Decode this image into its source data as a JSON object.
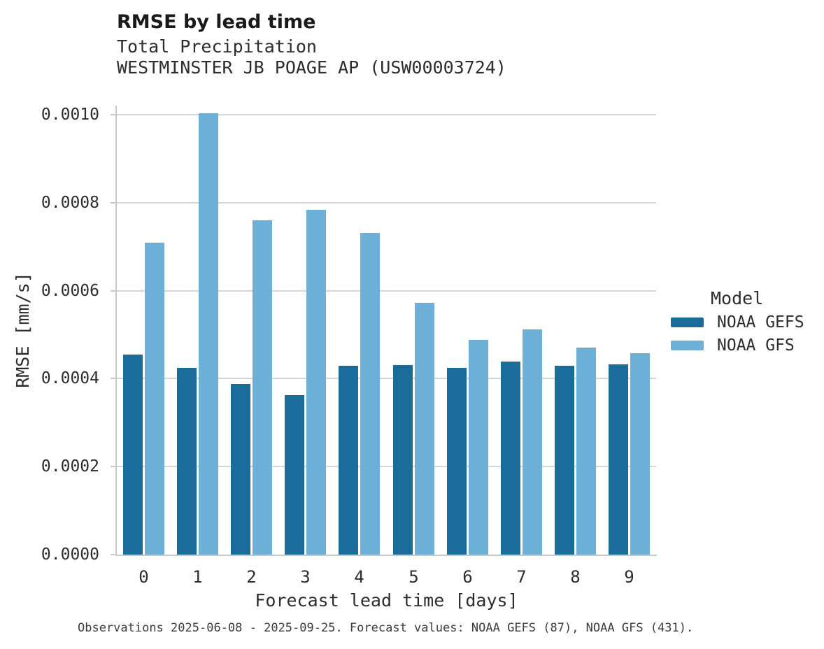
{
  "header": {
    "title": "RMSE by lead time",
    "subtitle1": "Total Precipitation",
    "subtitle2": "WESTMINSTER JB POAGE AP (USW00003724)"
  },
  "caption": "Observations 2025-06-08 - 2025-09-25. Forecast values: NOAA GEFS (87), NOAA GFS (431).",
  "colors": {
    "noaa_gefs": "#1a6d9b",
    "noaa_gfs": "#6cb0d8",
    "gridline": "#d6d6d6",
    "spine": "#c9c9c9"
  },
  "chart_data": {
    "type": "bar",
    "title": "RMSE by lead time",
    "subtitle": [
      "Total Precipitation",
      "WESTMINSTER JB POAGE AP (USW00003724)"
    ],
    "xlabel": "Forecast lead time [days]",
    "ylabel": "RMSE [mm/s]",
    "legend_title": "Model",
    "legend_position": "right",
    "grid": "horizontal",
    "categories": [
      "0",
      "1",
      "2",
      "3",
      "4",
      "5",
      "6",
      "7",
      "8",
      "9"
    ],
    "series": [
      {
        "name": "NOAA GEFS",
        "color": "#1a6d9b",
        "values": [
          0.000455,
          0.000425,
          0.000388,
          0.000362,
          0.000429,
          0.000431,
          0.000424,
          0.000439,
          0.000429,
          0.000432
        ]
      },
      {
        "name": "NOAA GFS",
        "color": "#6cb0d8",
        "values": [
          0.00071,
          0.001003,
          0.00076,
          0.000784,
          0.000731,
          0.000572,
          0.000489,
          0.000512,
          0.00047,
          0.000458
        ]
      }
    ],
    "ylim": [
      0,
      0.001021
    ],
    "yticks": [
      0.0,
      0.0002,
      0.0004,
      0.0006,
      0.0008,
      0.001
    ],
    "ytick_labels": [
      "0.0000",
      "0.0002",
      "0.0004",
      "0.0006",
      "0.0008",
      "0.0010"
    ]
  }
}
